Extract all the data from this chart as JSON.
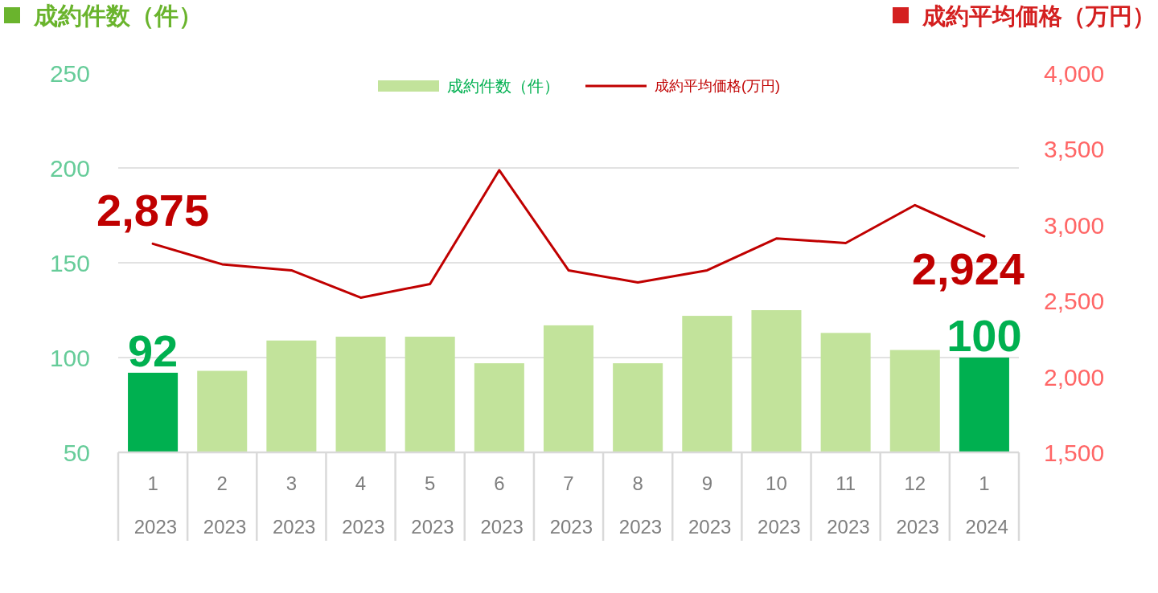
{
  "chart_data": {
    "type": "bar",
    "ylabel": "成約件数（件）",
    "y2label": "成約平均価格（万円）",
    "categories": [
      "1\n2023",
      "2\n2023",
      "3\n2023",
      "4\n2023",
      "5\n2023",
      "6\n2023",
      "7\n2023",
      "8\n2023",
      "9\n2023",
      "10\n2023",
      "11\n2023",
      "12\n2023",
      "1\n2024"
    ],
    "series": [
      {
        "name": "成約件数（件）",
        "color": "#c2e39b",
        "colors": [
          "#00b050",
          "#c2e39b",
          "#c2e39b",
          "#c2e39b",
          "#c2e39b",
          "#c2e39b",
          "#c2e39b",
          "#c2e39b",
          "#c2e39b",
          "#c2e39b",
          "#c2e39b",
          "#c2e39b",
          "#00b050"
        ],
        "values": [
          92,
          93,
          109,
          111,
          111,
          97,
          117,
          97,
          122,
          125,
          113,
          104,
          100
        ],
        "value_labels": [
          "92",
          null,
          null,
          null,
          null,
          null,
          null,
          null,
          null,
          null,
          null,
          null,
          "100"
        ]
      },
      {
        "name": "成約平均価格(万円)",
        "type": "line",
        "axis": "y2",
        "color": "#c00000",
        "values": [
          2875,
          2740,
          2700,
          2520,
          2610,
          3360,
          2700,
          2620,
          2700,
          2910,
          2880,
          3130,
          2924
        ],
        "value_labels": [
          "2,875",
          null,
          null,
          null,
          null,
          null,
          null,
          null,
          null,
          null,
          null,
          null,
          "2,924"
        ]
      }
    ],
    "ylim": [
      50,
      250
    ],
    "yticks": [
      50,
      100,
      150,
      200,
      250
    ],
    "y2lim": [
      1500,
      4000
    ],
    "y2ticks": [
      {
        "value": 1500,
        "label": "1,500"
      },
      {
        "value": 2000,
        "label": "2,000"
      },
      {
        "value": 2500,
        "label": "2,500"
      },
      {
        "value": 3000,
        "label": "3,000"
      },
      {
        "value": 3500,
        "label": "3,500"
      },
      {
        "value": 4000,
        "label": "4,000"
      }
    ],
    "grid": "y",
    "legend": "top"
  }
}
